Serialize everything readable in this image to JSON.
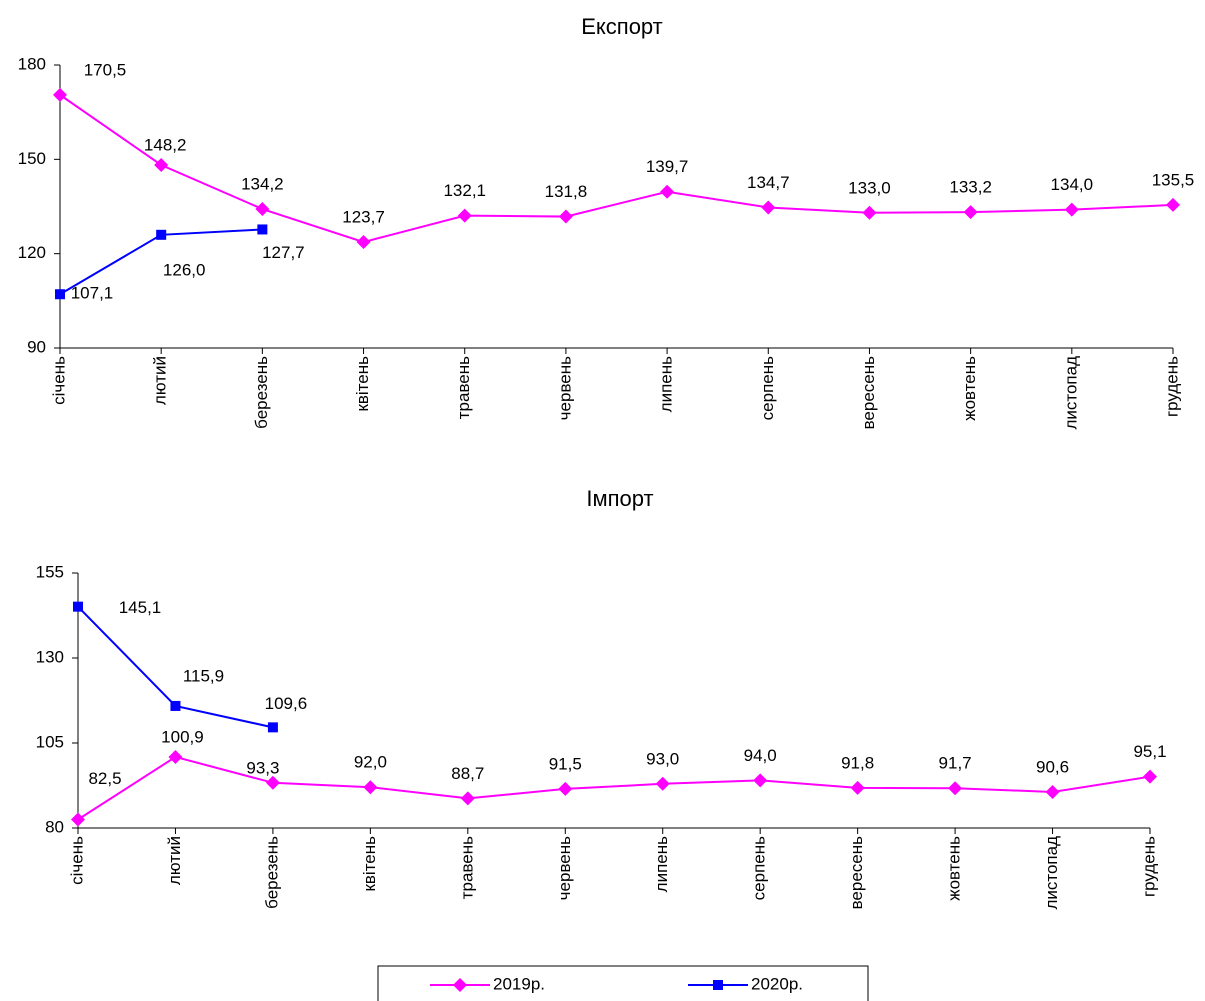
{
  "chart_data": [
    {
      "type": "line",
      "title": "Експорт",
      "categories": [
        "січень",
        "лютий",
        "березень",
        "квітень",
        "травень",
        "червень",
        "липень",
        "серпень",
        "вересень",
        "жовтень",
        "листопад",
        "грудень"
      ],
      "series": [
        {
          "color": "#ff00ff",
          "marker": "diamond",
          "values": [
            170.5,
            148.2,
            134.2,
            123.7,
            132.1,
            131.8,
            139.7,
            134.7,
            133.0,
            133.2,
            134.0,
            135.5
          ],
          "value_labels": [
            "170,5",
            "148,2",
            "134,2",
            "123,7",
            "132,1",
            "131,8",
            "139,7",
            "134,7",
            "133,0",
            "133,2",
            "134,0",
            "135,5"
          ]
        },
        {
          "color": "#0000ff",
          "marker": "square",
          "values": [
            107.1,
            126.0,
            127.7,
            null,
            null,
            null,
            null,
            null,
            null,
            null,
            null,
            null
          ],
          "value_labels": [
            "107,1",
            "126,0",
            "127,7",
            null,
            null,
            null,
            null,
            null,
            null,
            null,
            null,
            null
          ]
        }
      ],
      "ylim": [
        90,
        180
      ],
      "yticks": [
        90,
        120,
        150,
        180
      ]
    },
    {
      "type": "line",
      "title": "Імпорт",
      "categories": [
        "січень",
        "лютий",
        "березень",
        "квітень",
        "травень",
        "червень",
        "липень",
        "серпень",
        "вересень",
        "жовтень",
        "листопад",
        "грудень"
      ],
      "series": [
        {
          "color": "#ff00ff",
          "marker": "diamond",
          "values": [
            82.5,
            100.9,
            93.3,
            92.0,
            88.7,
            91.5,
            93.0,
            94.0,
            91.8,
            91.7,
            90.6,
            95.1
          ],
          "value_labels": [
            "82,5",
            "100,9",
            "93,3",
            "92,0",
            "88,7",
            "91,5",
            "93,0",
            "94,0",
            "91,8",
            "91,7",
            "90,6",
            "95,1"
          ]
        },
        {
          "color": "#0000ff",
          "marker": "square",
          "values": [
            145.1,
            115.9,
            109.6,
            null,
            null,
            null,
            null,
            null,
            null,
            null,
            null,
            null
          ],
          "value_labels": [
            "145,1",
            "115,9",
            "109,6",
            null,
            null,
            null,
            null,
            null,
            null,
            null,
            null,
            null
          ]
        }
      ],
      "ylim": [
        80,
        155
      ],
      "yticks": [
        80,
        105,
        130,
        155
      ]
    }
  ],
  "legend": {
    "entries": [
      {
        "name": "2019р.",
        "color": "#ff00ff",
        "marker": "diamond"
      },
      {
        "name": "2020р.",
        "color": "#0000ff",
        "marker": "square"
      }
    ]
  }
}
